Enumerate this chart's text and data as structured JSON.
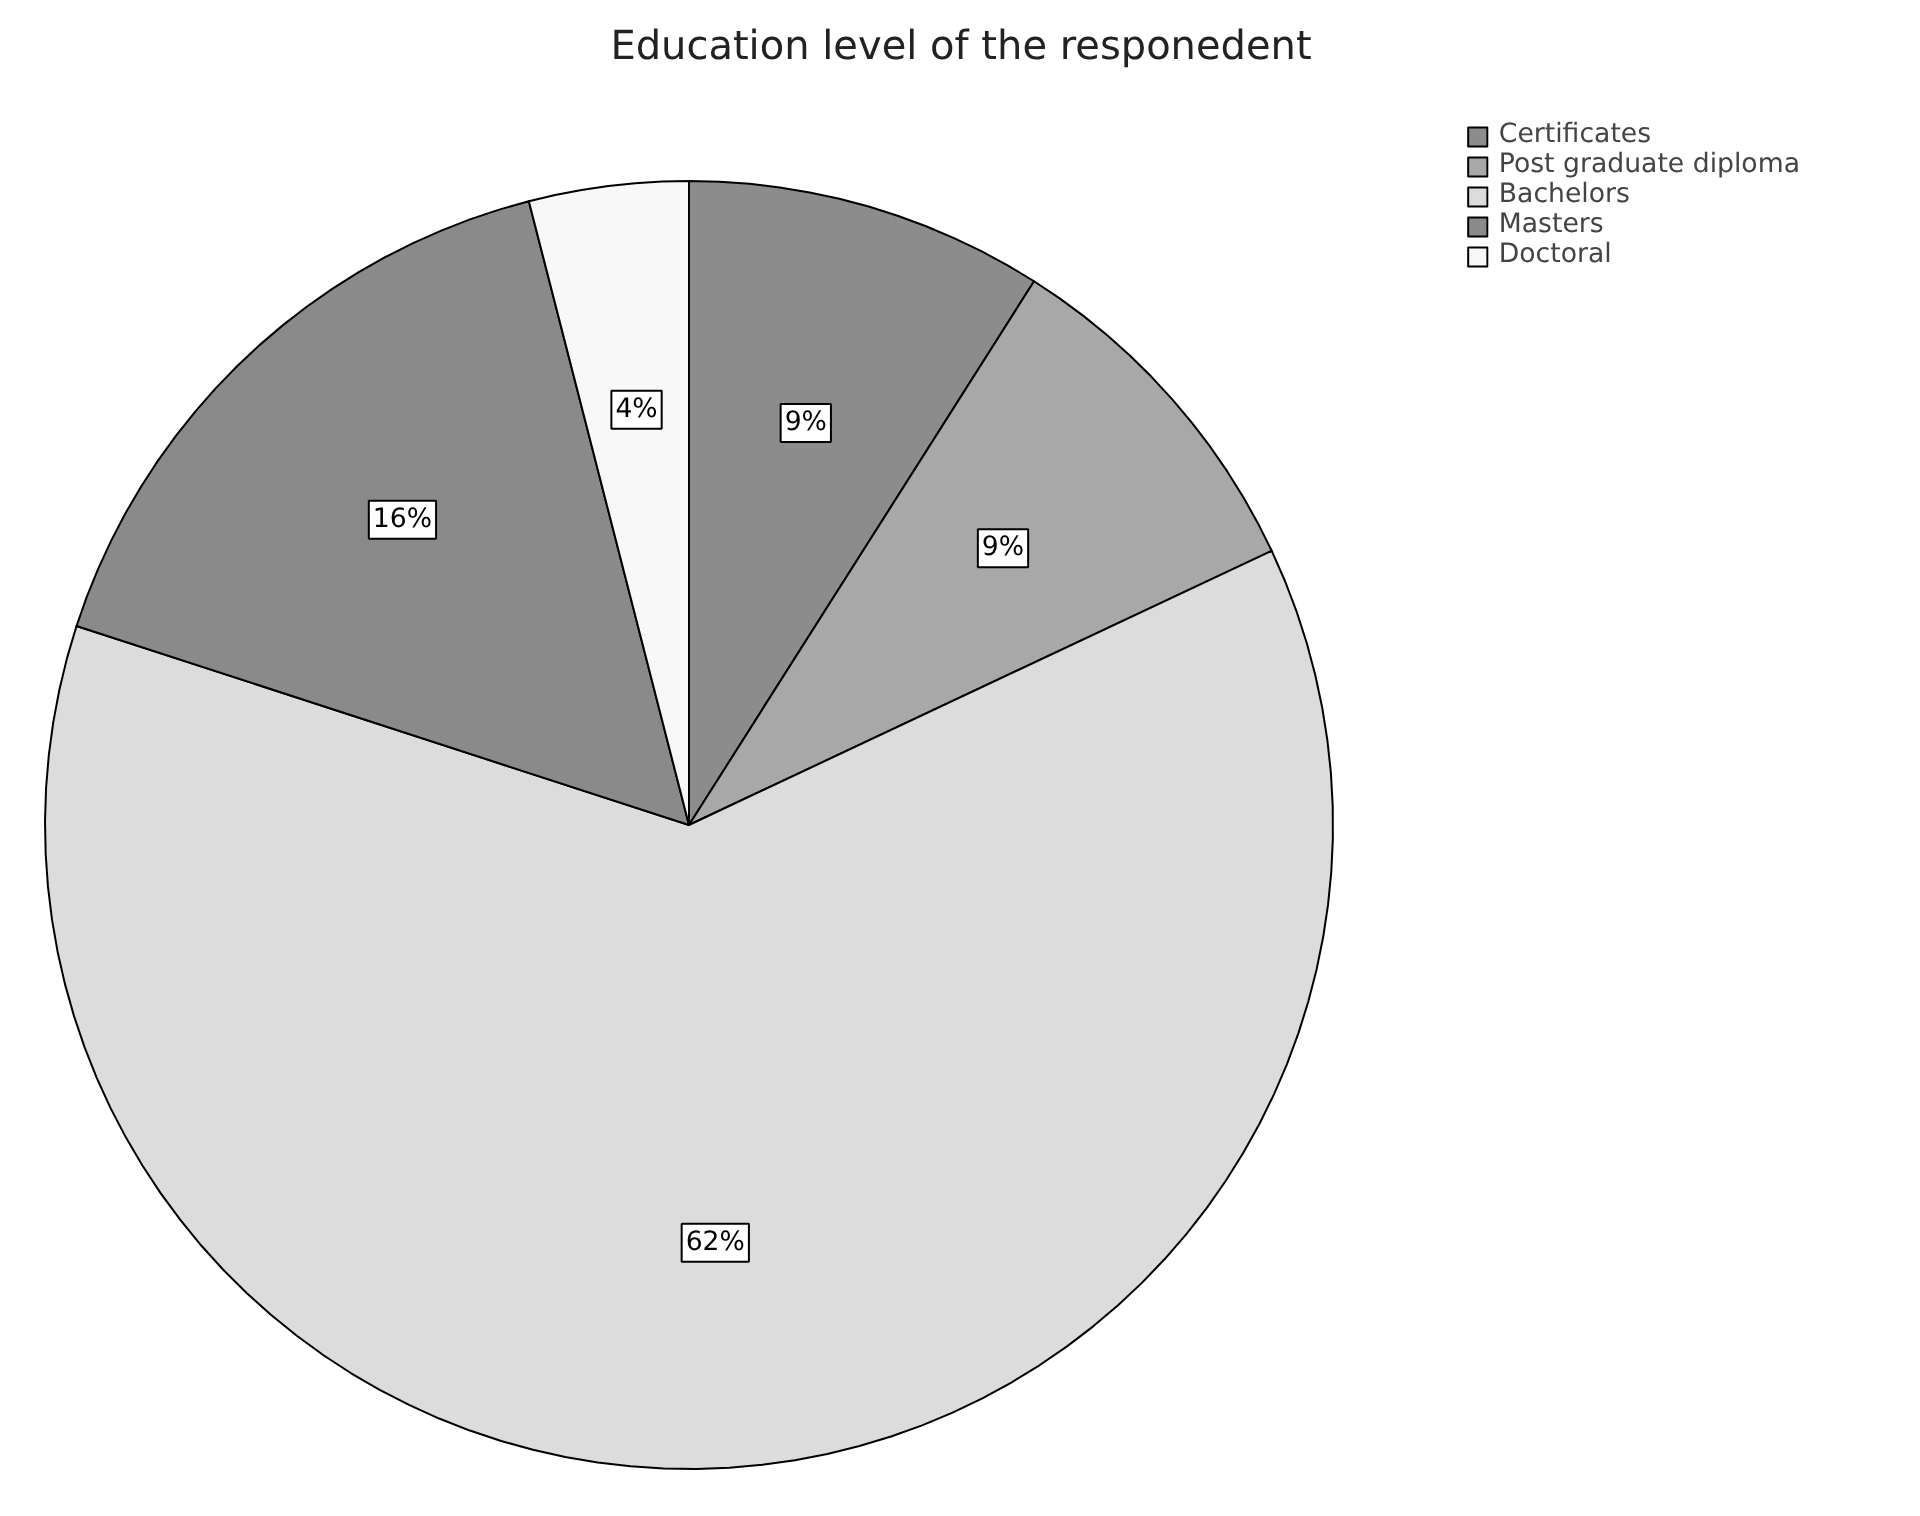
{
  "chart_data": {
    "type": "pie",
    "title": "Education level of the responedent",
    "categories": [
      "Certificates",
      "Post graduate diploma",
      "Bachelors",
      "Masters",
      "Doctoral"
    ],
    "values": [
      9,
      9,
      62,
      16,
      4
    ],
    "colors": [
      "#8c8c8c",
      "#a8a8a8",
      "#dcdcdc",
      "#8a8a8a",
      "#f8f8f8"
    ],
    "value_labels": [
      "9%",
      "9%",
      "62%",
      "16%",
      "4%"
    ],
    "legend": "top right"
  }
}
